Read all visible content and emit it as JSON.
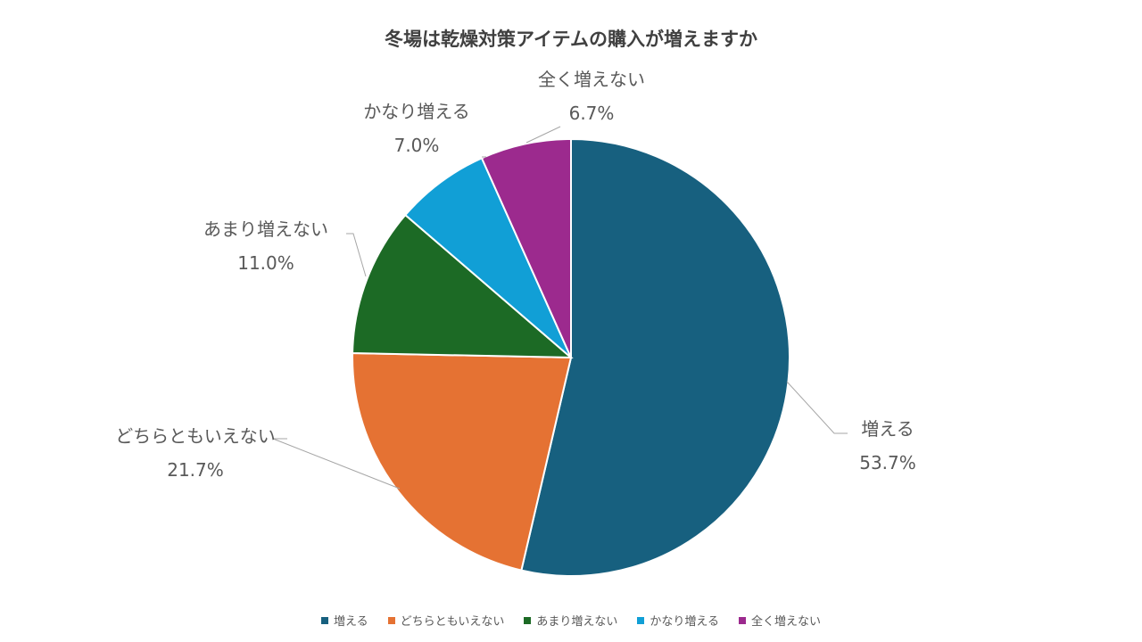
{
  "chart_data": {
    "type": "pie",
    "title": "冬場は乾燥対策アイテムの購入が増えますか",
    "categories": [
      "増える",
      "どちらともいえない",
      "あまり増えない",
      "かなり増える",
      "全く増えない"
    ],
    "values": [
      53.7,
      21.7,
      11.0,
      7.0,
      6.7
    ],
    "value_labels": [
      "53.7%",
      "21.7%",
      "11.0%",
      "7.0%",
      "6.7%"
    ],
    "colors": [
      "#17607F",
      "#E57233",
      "#1C6A25",
      "#119FD6",
      "#9C2A8E"
    ],
    "legend": "bottom"
  }
}
